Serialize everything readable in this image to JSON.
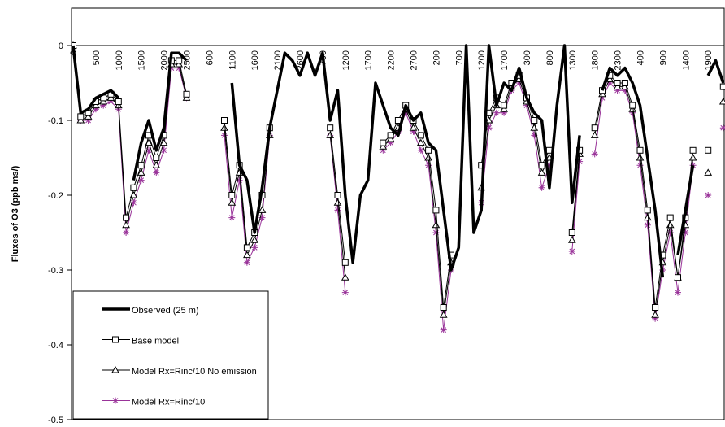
{
  "chart_data": {
    "type": "line",
    "y_label": "Fluxes of O3 (ppb ms/)",
    "ylim": [
      -0.5,
      0.05
    ],
    "yticks": [
      -0.5,
      -0.4,
      -0.3,
      -0.2,
      -0.1,
      0
    ],
    "grid": false,
    "legend": "bottom-left",
    "categories": [
      "0",
      null,
      null,
      "500",
      null,
      null,
      "1000",
      null,
      null,
      "1500",
      null,
      null,
      "2000",
      null,
      null,
      "2500",
      null,
      null,
      "600",
      null,
      null,
      "1100",
      null,
      null,
      "1600",
      null,
      null,
      "2100",
      null,
      null,
      "2600",
      null,
      null,
      "700",
      null,
      null,
      "1200",
      null,
      null,
      "1700",
      null,
      null,
      "2200",
      null,
      null,
      "2700",
      null,
      null,
      "200",
      null,
      null,
      "700",
      null,
      null,
      "1200",
      null,
      null,
      "1700",
      null,
      null,
      "300",
      null,
      null,
      "800",
      null,
      null,
      "1300",
      null,
      null,
      "1800",
      null,
      null,
      "2300",
      null,
      null,
      "400",
      null,
      null,
      "900",
      null,
      null,
      "1400",
      null,
      null,
      "1900",
      null,
      null
    ],
    "series": [
      {
        "name": "Observed (25 m)",
        "color": "#000000",
        "values": [
          0,
          -0.09,
          -0.085,
          -0.07,
          -0.065,
          -0.06,
          -0.07,
          null,
          -0.18,
          -0.13,
          -0.1,
          -0.14,
          -0.11,
          -0.01,
          -0.01,
          -0.02,
          null,
          null,
          null,
          null,
          null,
          -0.05,
          -0.16,
          -0.18,
          -0.25,
          -0.19,
          -0.11,
          -0.06,
          -0.01,
          -0.02,
          -0.04,
          -0.01,
          -0.04,
          -0.01,
          -0.1,
          -0.06,
          -0.2,
          -0.29,
          -0.2,
          -0.18,
          -0.05,
          -0.08,
          -0.11,
          -0.12,
          -0.08,
          -0.1,
          -0.09,
          -0.13,
          -0.14,
          -0.22,
          -0.3,
          -0.27,
          0,
          -0.25,
          -0.22,
          0,
          -0.08,
          -0.05,
          -0.06,
          -0.03,
          -0.07,
          -0.09,
          -0.1,
          -0.19,
          -0.08,
          0,
          -0.21,
          -0.12,
          null,
          null,
          -0.06,
          -0.03,
          -0.04,
          -0.03,
          -0.05,
          -0.08,
          -0.15,
          -0.22,
          -0.31,
          null,
          -0.28,
          -0.22,
          -0.16,
          null,
          -0.04,
          -0.02,
          -0.05
        ]
      },
      {
        "name": "Base model",
        "color": "#000000",
        "marker": "square",
        "values": [
          0,
          -0.095,
          -0.09,
          -0.075,
          -0.07,
          -0.065,
          -0.075,
          -0.23,
          -0.19,
          -0.16,
          -0.12,
          -0.15,
          -0.12,
          -0.02,
          -0.02,
          -0.065,
          null,
          null,
          null,
          null,
          -0.1,
          -0.2,
          -0.16,
          -0.27,
          -0.25,
          -0.2,
          -0.11,
          null,
          null,
          null,
          null,
          null,
          null,
          null,
          -0.11,
          -0.2,
          -0.29,
          null,
          null,
          null,
          null,
          -0.13,
          -0.12,
          -0.1,
          -0.08,
          -0.1,
          -0.12,
          -0.14,
          -0.22,
          -0.35,
          -0.28,
          null,
          null,
          null,
          -0.16,
          -0.09,
          -0.07,
          -0.08,
          -0.05,
          -0.04,
          -0.07,
          -0.1,
          -0.16,
          -0.14,
          null,
          null,
          -0.25,
          -0.14,
          null,
          -0.11,
          -0.06,
          -0.04,
          -0.05,
          -0.05,
          -0.08,
          -0.14,
          -0.22,
          -0.35,
          -0.28,
          -0.23,
          -0.31,
          -0.23,
          -0.14,
          null,
          -0.14,
          null,
          -0.055
        ]
      },
      {
        "name": "Model Rx=Rinc/10 No emission",
        "color": "#000000",
        "marker": "triangle",
        "values": [
          0,
          -0.1,
          -0.095,
          -0.08,
          -0.075,
          -0.07,
          -0.08,
          -0.24,
          -0.2,
          -0.17,
          -0.13,
          -0.16,
          -0.13,
          -0.025,
          -0.025,
          -0.07,
          null,
          null,
          null,
          null,
          -0.11,
          -0.21,
          -0.17,
          -0.28,
          -0.26,
          -0.22,
          -0.12,
          null,
          null,
          null,
          null,
          null,
          null,
          null,
          -0.12,
          -0.21,
          -0.31,
          null,
          null,
          null,
          null,
          -0.135,
          -0.125,
          -0.11,
          -0.085,
          -0.11,
          -0.13,
          -0.15,
          -0.24,
          -0.36,
          -0.29,
          null,
          null,
          null,
          -0.19,
          -0.1,
          -0.08,
          -0.085,
          -0.055,
          -0.045,
          -0.075,
          -0.11,
          -0.17,
          -0.15,
          null,
          null,
          -0.26,
          -0.145,
          null,
          -0.12,
          -0.065,
          -0.045,
          -0.055,
          -0.055,
          -0.085,
          -0.15,
          -0.23,
          -0.36,
          -0.29,
          -0.24,
          -0.31,
          -0.24,
          -0.15,
          null,
          -0.17,
          null,
          -0.075
        ]
      },
      {
        "name": "Model Rx=Rinc/10",
        "color": "#993399",
        "marker": "asterisk",
        "values": [
          0,
          -0.1,
          -0.1,
          -0.085,
          -0.08,
          -0.075,
          -0.085,
          -0.25,
          -0.21,
          -0.18,
          -0.14,
          -0.17,
          -0.14,
          -0.03,
          -0.03,
          -0.07,
          null,
          null,
          null,
          null,
          -0.12,
          -0.23,
          -0.18,
          -0.29,
          -0.27,
          -0.23,
          -0.12,
          null,
          null,
          null,
          null,
          null,
          null,
          null,
          -0.12,
          -0.22,
          -0.33,
          null,
          null,
          null,
          null,
          -0.14,
          -0.13,
          -0.115,
          -0.09,
          -0.115,
          -0.14,
          -0.16,
          -0.25,
          -0.38,
          -0.3,
          null,
          null,
          null,
          -0.21,
          -0.11,
          -0.09,
          -0.09,
          -0.06,
          -0.05,
          -0.08,
          -0.12,
          -0.19,
          -0.16,
          null,
          null,
          -0.275,
          -0.155,
          null,
          -0.145,
          -0.07,
          -0.05,
          -0.06,
          -0.06,
          -0.09,
          -0.16,
          -0.24,
          -0.365,
          -0.3,
          -0.25,
          -0.33,
          -0.25,
          -0.16,
          null,
          -0.2,
          null,
          -0.11
        ]
      }
    ]
  }
}
